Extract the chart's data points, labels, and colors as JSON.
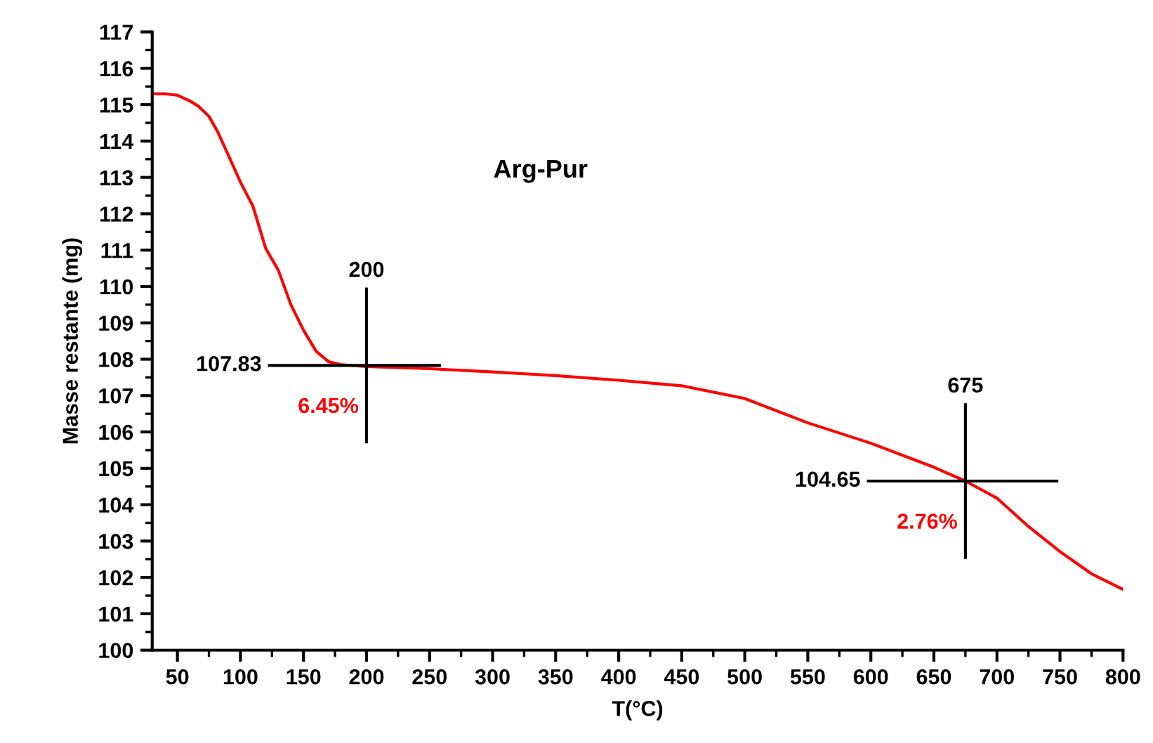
{
  "chart_data": {
    "type": "line",
    "title": "Arg-Pur",
    "xlabel": "T(°C)",
    "ylabel": "Masse restante (mg)",
    "xlim": [
      30,
      800
    ],
    "xticks": [
      50,
      100,
      150,
      200,
      250,
      300,
      350,
      400,
      450,
      500,
      550,
      600,
      650,
      700,
      750,
      800
    ],
    "ylim": [
      100,
      117
    ],
    "yticks": [
      100,
      101,
      102,
      103,
      104,
      105,
      106,
      107,
      108,
      109,
      110,
      111,
      112,
      113,
      114,
      115,
      116,
      117
    ],
    "grid": false,
    "series": [
      {
        "color": "#ff0000",
        "x": [
          30,
          40,
          50,
          60,
          67,
          75,
          82,
          90,
          100,
          110,
          120,
          130,
          140,
          150,
          160,
          170,
          180,
          200,
          250,
          300,
          350,
          400,
          450,
          500,
          550,
          600,
          650,
          675,
          700,
          725,
          750,
          775,
          800
        ],
        "values": [
          115.3,
          115.3,
          115.26,
          115.1,
          114.95,
          114.68,
          114.25,
          113.64,
          112.87,
          112.2,
          111.05,
          110.45,
          109.5,
          108.8,
          108.22,
          107.93,
          107.85,
          107.8,
          107.74,
          107.65,
          107.55,
          107.42,
          107.27,
          106.92,
          106.25,
          105.69,
          105.03,
          104.65,
          104.18,
          103.4,
          102.71,
          102.1,
          101.67
        ]
      }
    ],
    "ref_lines": [
      {
        "axis": "x",
        "value": 200,
        "label": "200",
        "color": "#000000"
      },
      {
        "axis": "y",
        "value": 107.83,
        "label": "107.83",
        "color": "#000000"
      },
      {
        "axis": "x",
        "value": 675,
        "label": "675",
        "color": "#000000"
      },
      {
        "axis": "y",
        "value": 104.65,
        "label": "104.65",
        "color": "#000000"
      }
    ],
    "annotations": [
      "6.45%",
      "2.76%"
    ]
  }
}
